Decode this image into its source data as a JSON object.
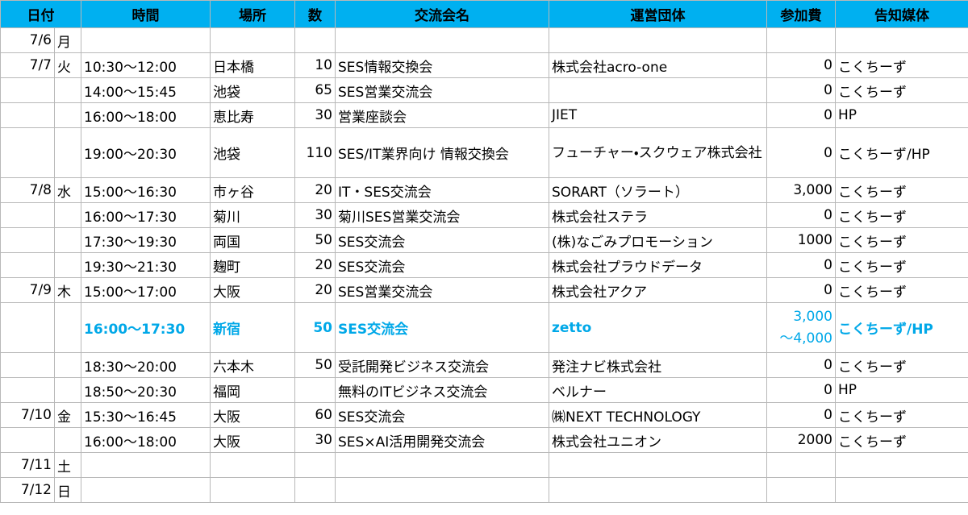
{
  "header": {
    "columns": [
      "日付",
      "時間",
      "場所",
      "数",
      "交流会名",
      "運営団体",
      "参加費",
      "告知媒体"
    ]
  },
  "table": {
    "rows": [
      [
        "7/6",
        "月",
        null,
        null,
        null,
        null,
        null,
        null,
        null
      ],
      [
        "7/7",
        "火",
        "10:30〜12:00",
        "日本橋",
        "10",
        "SES情報交換会",
        "株式会社acro-one",
        "0",
        "こくちーず"
      ],
      [
        null,
        null,
        "14:00〜15:45",
        "池袋",
        "65",
        "SES営業交流会",
        null,
        "0",
        "こくちーず"
      ],
      [
        null,
        null,
        "16:00〜18:00",
        "恵比寿",
        "30",
        "営業座談会",
        "JIET",
        "0",
        "HP"
      ],
      [
        null,
        null,
        "19:00〜20:30",
        "池袋",
        "110",
        "SES/IT業界向け 情報交換会",
        "フューチャー・スクウェア株式会社",
        "0",
        "こくちーず/HP"
      ],
      [
        "7/8",
        "水",
        "15:00〜16:30",
        "市ヶ谷",
        "20",
        "IT・SES交流会",
        "SORART（ソラート）",
        "3,000",
        "こくちーず"
      ],
      [
        null,
        null,
        "16:00〜17:30",
        "菊川",
        "30",
        "菊川SES営業交流会",
        "株式会社ステラ",
        "0",
        "こくちーず"
      ],
      [
        null,
        null,
        "17:30〜19:30",
        "両国",
        "50",
        "SES交流会",
        "(株)なごみプロモーション",
        "1000",
        "こくちーず"
      ],
      [
        null,
        null,
        "19:30〜21:30",
        "麹町",
        "20",
        "SES交流会",
        "株式会社プラウドデータ",
        "0",
        "こくちーず"
      ],
      [
        "7/9",
        "木",
        "15:00〜17:00",
        "大阪",
        "20",
        "SES営業交流会",
        "株式会社アクア",
        "0",
        "こくちーず"
      ],
      [
        null,
        null,
        "16:00〜17:30",
        "新宿",
        "50",
        "SES交流会",
        "zetto",
        "3,000\n〜4,000",
        "こくちーず/HP"
      ],
      [
        null,
        null,
        "18:30〜20:00",
        "六本木",
        "50",
        "受託開発ビジネス交流会",
        "発注ナビ株式会社",
        "0",
        "こくちーず"
      ],
      [
        null,
        null,
        "18:50〜20:30",
        "福岡",
        null,
        "無料のITビジネス交流会",
        "ベルナー",
        "0",
        "HP"
      ],
      [
        "7/10",
        "金",
        "15:30〜16:45",
        "大阪",
        "60",
        "SES交流会",
        "㈱NEXT TECHNOLOGY",
        "0",
        "こくちーず"
      ],
      [
        null,
        null,
        "16:00〜18:00",
        "大阪",
        "30",
        "SES×AI活用開発交流会",
        "株式会社ユニオン",
        "2000",
        "こくちーず"
      ],
      [
        "7/11",
        "土",
        null,
        null,
        null,
        null,
        null,
        null,
        null
      ],
      [
        "7/12",
        "日",
        null,
        null,
        null,
        null,
        null,
        null,
        null
      ]
    ]
  }
}
